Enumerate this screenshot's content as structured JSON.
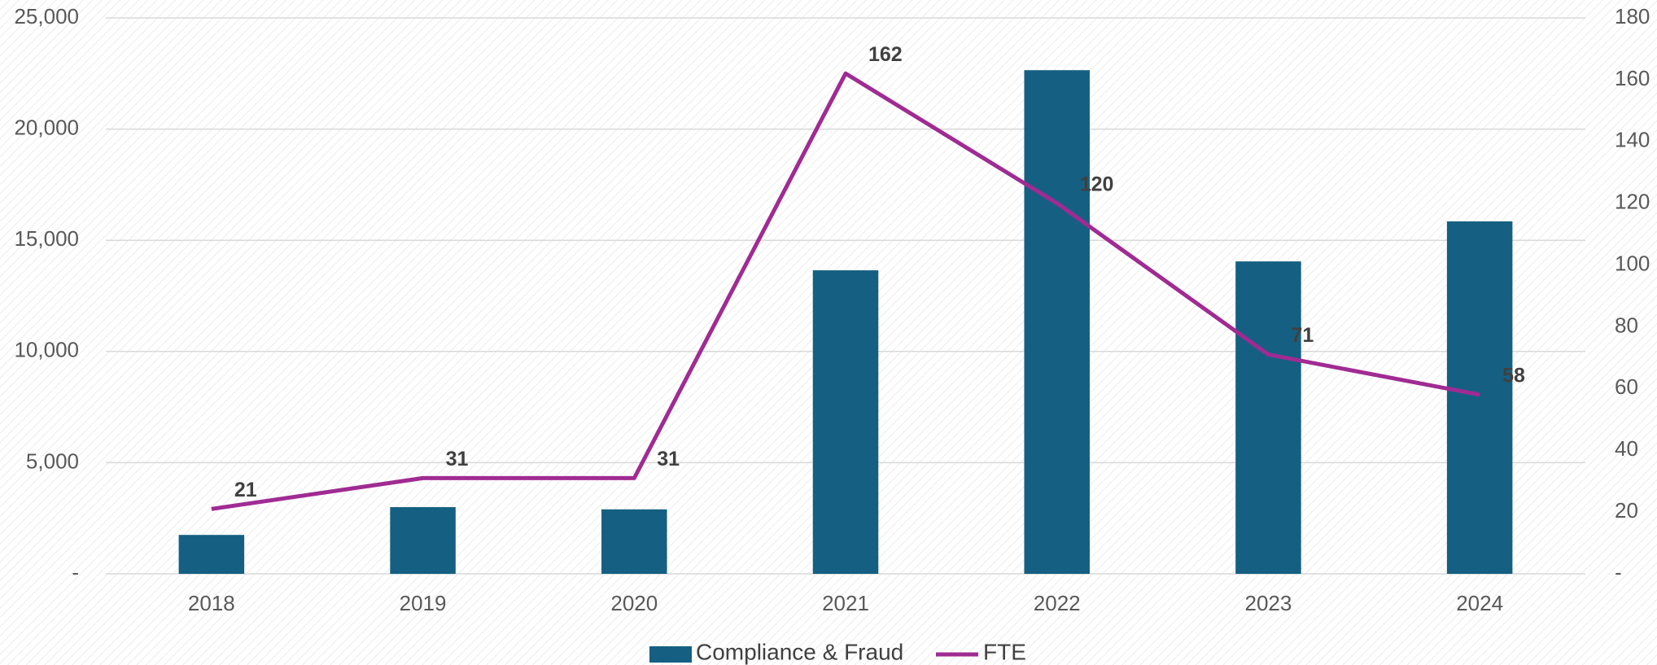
{
  "chart_data": {
    "type": "bar_line",
    "categories": [
      "2018",
      "2019",
      "2020",
      "2021",
      "2022",
      "2023",
      "2024"
    ],
    "series": [
      {
        "name": "Compliance & Fraud",
        "color": "#156082",
        "type": "bar",
        "values": [
          1750,
          3000,
          2900,
          13650,
          22650,
          14050,
          15850
        ]
      },
      {
        "name": "FTE",
        "color": "#a02b93",
        "type": "line",
        "axis": "y2",
        "values": [
          21,
          31,
          31,
          162,
          120,
          71,
          58
        ]
      }
    ],
    "ylim": [
      0,
      25000
    ],
    "yticks": [
      {
        "value": 0,
        "label": "-"
      },
      {
        "value": 5000,
        "label": "5,000"
      },
      {
        "value": 10000,
        "label": "10,000"
      },
      {
        "value": 15000,
        "label": "15,000"
      },
      {
        "value": 20000,
        "label": "20,000"
      },
      {
        "value": 25000,
        "label": "25,000"
      }
    ],
    "y2lim": [
      0,
      180
    ],
    "y2ticks": [
      {
        "value": 0,
        "label": "-"
      },
      20,
      40,
      60,
      80,
      100,
      120,
      140,
      160,
      180
    ],
    "grid": true,
    "legend": "bottom"
  }
}
